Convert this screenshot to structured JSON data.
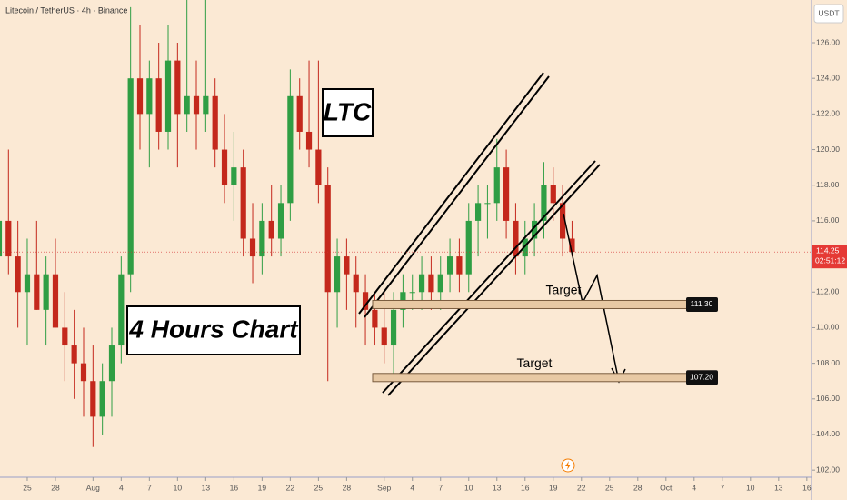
{
  "chart_data": {
    "type": "candlestick",
    "title": "Litecoin / TetherUS · 4h · Binance",
    "y_unit": "USDT",
    "up_color": "#2f9e44",
    "down_color": "#c4281c",
    "x": [
      -3,
      -2,
      -1,
      0,
      1,
      2,
      3,
      4,
      5,
      6,
      7,
      8,
      9,
      10,
      11,
      12,
      13,
      14,
      15,
      16,
      17,
      18,
      19,
      20,
      21,
      22,
      23,
      24,
      25,
      26,
      27,
      28,
      29,
      30,
      31,
      32,
      33,
      34,
      35,
      36,
      37,
      38,
      39,
      40,
      41,
      42,
      43,
      44,
      45,
      46,
      47,
      48,
      49,
      50,
      51,
      52,
      53,
      54,
      55,
      56,
      57,
      58
    ],
    "open": [
      114,
      116,
      114,
      112,
      113,
      111,
      113,
      110,
      109,
      108,
      107,
      105,
      107,
      109,
      113,
      124,
      122,
      124,
      121,
      125,
      122,
      123,
      122,
      123,
      120,
      118,
      119,
      115,
      114,
      116,
      115,
      117,
      123,
      121,
      120,
      118,
      112,
      114,
      113,
      112,
      111,
      110,
      109,
      111,
      112,
      112,
      113,
      112,
      113,
      114,
      113,
      116,
      117,
      117,
      119,
      116,
      114,
      115,
      116,
      118,
      117,
      115
    ],
    "high": [
      118,
      120,
      116,
      115,
      116,
      114,
      115,
      112,
      111,
      110,
      109,
      108,
      110,
      114,
      128,
      127,
      125,
      126,
      127,
      126,
      129,
      125,
      129,
      124,
      122,
      121,
      120,
      117,
      117,
      118,
      118,
      124.5,
      124,
      125,
      125,
      119,
      115,
      115,
      114,
      113,
      112,
      112,
      112,
      113,
      113,
      114,
      114,
      114,
      115,
      115,
      117,
      118,
      118,
      120.6,
      120,
      117,
      116,
      117,
      119.3,
      119,
      118,
      116
    ],
    "low": [
      111,
      113,
      110,
      109,
      111,
      109,
      110,
      107,
      106,
      105,
      103.3,
      104,
      105,
      108,
      112,
      120,
      119,
      120,
      120,
      119,
      121,
      120,
      121,
      119,
      117,
      116,
      114,
      112.5,
      113,
      114,
      114,
      116,
      120,
      119,
      117,
      107,
      110,
      111,
      110,
      109,
      109,
      108,
      107,
      110,
      111,
      111,
      111,
      111,
      112,
      112,
      112,
      114,
      115,
      116,
      115,
      113,
      113,
      114,
      115,
      116,
      114,
      114
    ],
    "close": [
      116,
      114,
      112,
      113,
      111,
      113,
      110,
      109,
      108,
      107,
      105,
      107,
      109,
      113,
      124,
      122,
      124,
      121,
      125,
      122,
      123,
      122,
      123,
      120,
      118,
      119,
      115,
      114,
      116,
      115,
      117,
      123,
      121,
      120,
      118,
      112,
      114,
      113,
      112,
      111,
      110,
      109,
      111,
      112,
      112,
      113,
      112,
      113,
      114,
      113,
      116,
      117,
      117,
      119,
      116,
      114,
      115,
      116,
      118,
      117,
      115,
      114.25
    ],
    "xlim": [
      -2.9,
      83.5
    ],
    "xticks": [
      {
        "value": 0,
        "label": "25"
      },
      {
        "value": 3,
        "label": "28"
      },
      {
        "value": 7,
        "label": "Aug"
      },
      {
        "value": 10,
        "label": "4"
      },
      {
        "value": 13,
        "label": "7"
      },
      {
        "value": 16,
        "label": "10"
      },
      {
        "value": 19,
        "label": "13"
      },
      {
        "value": 22,
        "label": "16"
      },
      {
        "value": 25,
        "label": "19"
      },
      {
        "value": 28,
        "label": "22"
      },
      {
        "value": 31,
        "label": "25"
      },
      {
        "value": 34,
        "label": "28"
      },
      {
        "value": 38,
        "label": "Sep"
      },
      {
        "value": 41,
        "label": "4"
      },
      {
        "value": 44,
        "label": "7"
      },
      {
        "value": 47,
        "label": "10"
      },
      {
        "value": 50,
        "label": "13"
      },
      {
        "value": 53,
        "label": "16"
      },
      {
        "value": 56,
        "label": "19"
      },
      {
        "value": 59,
        "label": "22"
      },
      {
        "value": 62,
        "label": "25"
      },
      {
        "value": 65,
        "label": "28"
      },
      {
        "value": 68,
        "label": "Oct"
      },
      {
        "value": 71,
        "label": "4"
      },
      {
        "value": 74,
        "label": "7"
      },
      {
        "value": 77,
        "label": "10"
      },
      {
        "value": 80,
        "label": "13"
      },
      {
        "value": 83,
        "label": "16"
      }
    ],
    "ylim": [
      101.6,
      128.4
    ],
    "yticks": [
      {
        "value": 102,
        "label": "102.00"
      },
      {
        "value": 104,
        "label": "104.00"
      },
      {
        "value": 106,
        "label": "106.00"
      },
      {
        "value": 108,
        "label": "108.00"
      },
      {
        "value": 110,
        "label": "110.00"
      },
      {
        "value": 112,
        "label": "112.00"
      },
      {
        "value": 114,
        "label": "114.00"
      },
      {
        "value": 116,
        "label": "116.00"
      },
      {
        "value": 118,
        "label": "118.00"
      },
      {
        "value": 120,
        "label": "120.00"
      },
      {
        "value": 122,
        "label": "122.00"
      },
      {
        "value": 124,
        "label": "124.00"
      },
      {
        "value": 126,
        "label": "126.00"
      }
    ],
    "current_price": {
      "value": 114.25,
      "label": "114.25",
      "countdown": "02:51:12"
    },
    "targets": [
      {
        "text": "Target",
        "value": 111.3,
        "label": "111.30"
      },
      {
        "text": "Target",
        "value": 107.2,
        "label": "107.20"
      }
    ],
    "annotations": [
      "LTC",
      "4 Hours Chart"
    ]
  }
}
